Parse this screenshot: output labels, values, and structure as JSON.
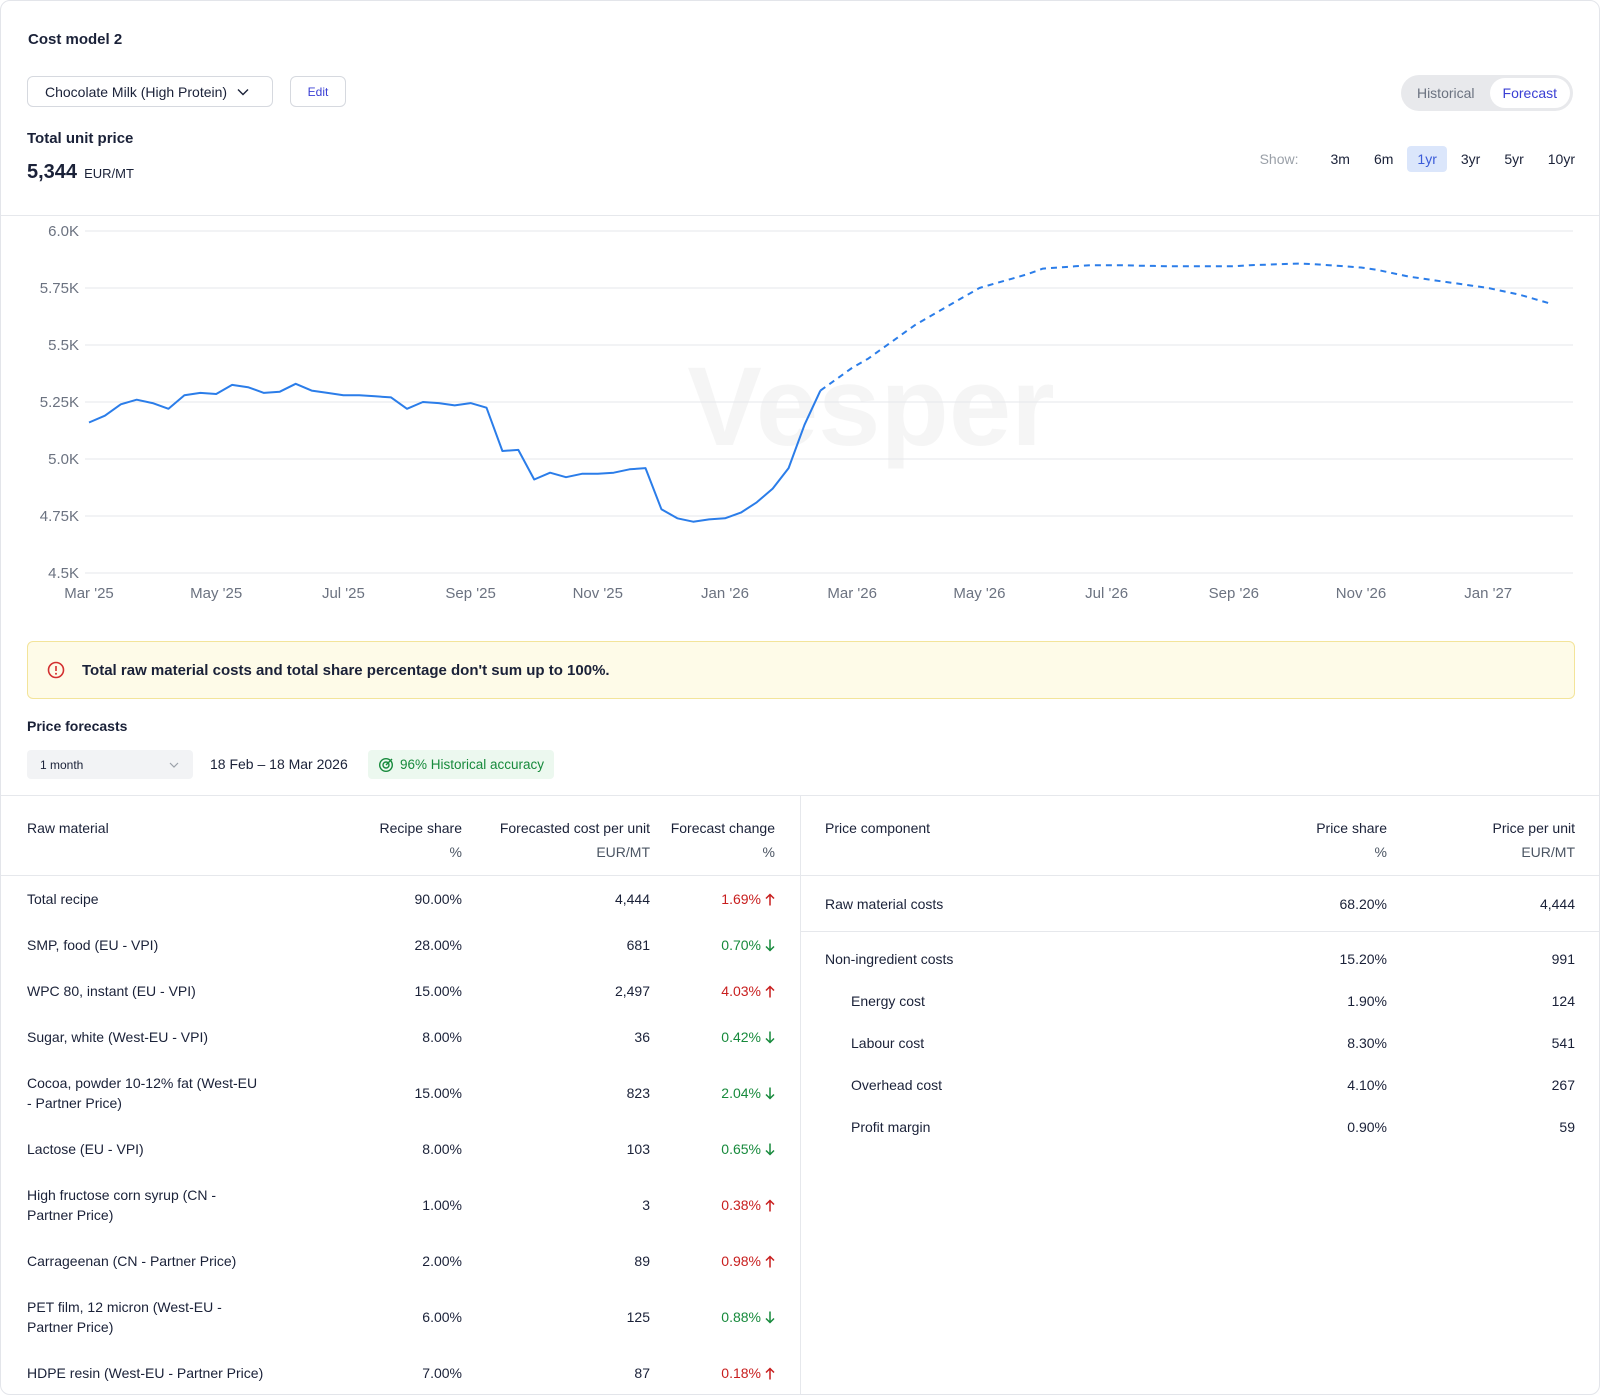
{
  "header": {
    "title": "Cost model 2",
    "product": "Chocolate Milk (High Protein)",
    "edit": "Edit",
    "views": [
      "Historical",
      "Forecast"
    ],
    "active_view": 1,
    "price_label": "Total unit price",
    "price": "5,344",
    "price_unit": "EUR/MT",
    "show_label": "Show:",
    "ranges": [
      "3m",
      "6m",
      "1yr",
      "3yr",
      "5yr",
      "10yr"
    ],
    "active_range": 2
  },
  "chart_data": {
    "type": "line",
    "watermark": "Vesper",
    "grid": true,
    "ylim": [
      4500,
      6000
    ],
    "yticks": [
      {
        "value": 4500,
        "label": "4.5K"
      },
      {
        "value": 4750,
        "label": "4.75K"
      },
      {
        "value": 5000,
        "label": "5.0K"
      },
      {
        "value": 5250,
        "label": "5.25K"
      },
      {
        "value": 5500,
        "label": "5.5K"
      },
      {
        "value": 5750,
        "label": "5.75K"
      },
      {
        "value": 6000,
        "label": "6.0K"
      }
    ],
    "categories": [
      "Mar '25",
      null,
      null,
      null,
      null,
      null,
      null,
      null,
      "May '25",
      null,
      null,
      null,
      null,
      null,
      null,
      null,
      "Jul '25",
      null,
      null,
      null,
      null,
      null,
      null,
      null,
      "Sep '25",
      null,
      null,
      null,
      null,
      null,
      null,
      null,
      "Nov '25",
      null,
      null,
      null,
      null,
      null,
      null,
      null,
      "Jan '26",
      null,
      null,
      null,
      null,
      null,
      null,
      null,
      "Mar '26",
      null,
      null,
      null,
      null,
      null,
      null,
      null,
      "May '26",
      null,
      null,
      null,
      null,
      null,
      null,
      null,
      "Jul '26",
      null,
      null,
      null,
      null,
      null,
      null,
      null,
      "Sep '26",
      null,
      null,
      null,
      null,
      null,
      null,
      null,
      "Nov '26",
      null,
      null,
      null,
      null,
      null,
      null,
      null,
      "Jan '27",
      null,
      null,
      null,
      null
    ],
    "series": [
      {
        "color": "#2b7de9",
        "dashed": false,
        "values": [
          5160,
          5190,
          5240,
          5260,
          5245,
          5220,
          5280,
          5290,
          5285,
          5325,
          5315,
          5290,
          5295,
          5330,
          5300,
          5290,
          5280,
          5280,
          5275,
          5270,
          5220,
          5250,
          5245,
          5235,
          5245,
          5225,
          5035,
          5040,
          4910,
          4940,
          4920,
          4935,
          4935,
          4940,
          4955,
          4960,
          4780,
          4740,
          4725,
          4735,
          4740,
          4765,
          4810,
          4870,
          4960,
          5150,
          5300,
          null,
          null,
          null,
          null,
          null,
          null,
          null,
          null,
          null,
          null,
          null,
          null,
          null,
          null,
          null,
          null,
          null,
          null,
          null,
          null,
          null,
          null,
          null,
          null,
          null,
          null,
          null,
          null,
          null,
          null,
          null,
          null,
          null,
          null,
          null,
          null,
          null,
          null,
          null,
          null,
          null,
          null,
          null,
          null,
          null,
          null
        ]
      },
      {
        "color": "#2b7de9",
        "dashed": true,
        "values": [
          null,
          null,
          null,
          null,
          null,
          null,
          null,
          null,
          null,
          null,
          null,
          null,
          null,
          null,
          null,
          null,
          null,
          null,
          null,
          null,
          null,
          null,
          null,
          null,
          null,
          null,
          null,
          null,
          null,
          null,
          null,
          null,
          null,
          null,
          null,
          null,
          null,
          null,
          null,
          null,
          null,
          null,
          null,
          null,
          null,
          null,
          5300,
          5350,
          5400,
          5440,
          5490,
          5540,
          5590,
          5630,
          5670,
          5710,
          5750,
          5770,
          5790,
          5810,
          5835,
          5840,
          5845,
          5850,
          5850,
          5850,
          5848,
          5847,
          5845,
          5845,
          5845,
          5845,
          5845,
          5850,
          5852,
          5855,
          5857,
          5855,
          5850,
          5845,
          5840,
          5830,
          5815,
          5800,
          5790,
          5780,
          5770,
          5760,
          5750,
          5735,
          5720,
          5700,
          5680
        ]
      }
    ]
  },
  "warning": "Total raw material costs and total share percentage don't sum up to 100%.",
  "forecasts": {
    "title": "Price forecasts",
    "period": "1 month",
    "dates": "18 Feb – 18 Mar 2026",
    "accuracy": "96% Historical accuracy"
  },
  "raw_materials": {
    "columns": [
      {
        "label": "Raw material"
      },
      {
        "label": "Recipe share",
        "unit": "%"
      },
      {
        "label": "Forecasted cost per unit",
        "unit": "EUR/MT"
      },
      {
        "label": "Forecast change",
        "unit": "%"
      }
    ],
    "rows": [
      {
        "name": "Total recipe",
        "share": "90.00%",
        "cost": "4,444",
        "change": "1.69%",
        "trend": "up"
      },
      {
        "name": "SMP, food (EU - VPI)",
        "share": "28.00%",
        "cost": "681",
        "change": "0.70%",
        "trend": "down"
      },
      {
        "name": "WPC 80, instant (EU - VPI)",
        "share": "15.00%",
        "cost": "2,497",
        "change": "4.03%",
        "trend": "up"
      },
      {
        "name": "Sugar, white (West-EU - VPI)",
        "share": "8.00%",
        "cost": "36",
        "change": "0.42%",
        "trend": "down"
      },
      {
        "name": "Cocoa, powder 10-12% fat (West-EU - Partner Price)",
        "share": "15.00%",
        "cost": "823",
        "change": "2.04%",
        "trend": "down"
      },
      {
        "name": "Lactose (EU - VPI)",
        "share": "8.00%",
        "cost": "103",
        "change": "0.65%",
        "trend": "down"
      },
      {
        "name": "High fructose corn syrup (CN - Partner Price)",
        "share": "1.00%",
        "cost": "3",
        "change": "0.38%",
        "trend": "up"
      },
      {
        "name": "Carrageenan (CN - Partner Price)",
        "share": "2.00%",
        "cost": "89",
        "change": "0.98%",
        "trend": "up"
      },
      {
        "name": "PET film, 12 micron (West-EU - Partner Price)",
        "share": "6.00%",
        "cost": "125",
        "change": "0.88%",
        "trend": "down"
      },
      {
        "name": "HDPE resin (West-EU - Partner Price)",
        "share": "7.00%",
        "cost": "87",
        "change": "0.18%",
        "trend": "up"
      }
    ]
  },
  "price_components": {
    "columns": [
      {
        "label": "Price component"
      },
      {
        "label": "Price share",
        "unit": "%"
      },
      {
        "label": "Price per unit",
        "unit": "EUR/MT"
      }
    ],
    "groups": [
      [
        {
          "name": "Raw material costs",
          "share": "68.20%",
          "price": "4,444",
          "level": 0
        }
      ],
      [
        {
          "name": "Non-ingredient costs",
          "share": "15.20%",
          "price": "991",
          "level": 0
        },
        {
          "name": "Energy cost",
          "share": "1.90%",
          "price": "124",
          "level": 1
        },
        {
          "name": "Labour cost",
          "share": "8.30%",
          "price": "541",
          "level": 1
        },
        {
          "name": "Overhead cost",
          "share": "4.10%",
          "price": "267",
          "level": 1
        },
        {
          "name": "Profit margin",
          "share": "0.90%",
          "price": "59",
          "level": 1
        }
      ]
    ]
  }
}
